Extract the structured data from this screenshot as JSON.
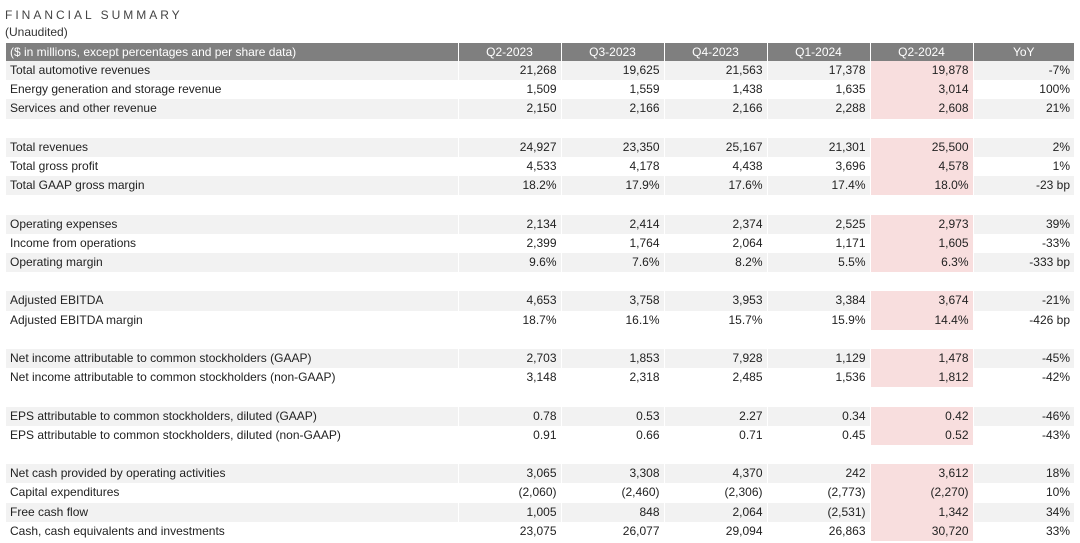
{
  "title": "FINANCIAL SUMMARY",
  "subtitle": "(Unaudited)",
  "table": {
    "header_label": "($ in millions, except percentages and per share data)",
    "columns": [
      "Q2-2023",
      "Q3-2023",
      "Q4-2023",
      "Q1-2024",
      "Q2-2024",
      "YoY"
    ],
    "groups": [
      [
        {
          "label": "Total automotive revenues",
          "values": [
            "21,268",
            "19,625",
            "21,563",
            "17,378",
            "19,878",
            "-7%"
          ]
        },
        {
          "label": "Energy generation and storage revenue",
          "values": [
            "1,509",
            "1,559",
            "1,438",
            "1,635",
            "3,014",
            "100%"
          ]
        },
        {
          "label": "Services and other revenue",
          "values": [
            "2,150",
            "2,166",
            "2,166",
            "2,288",
            "2,608",
            "21%"
          ]
        }
      ],
      [
        {
          "label": "Total revenues",
          "values": [
            "24,927",
            "23,350",
            "25,167",
            "21,301",
            "25,500",
            "2%"
          ]
        },
        {
          "label": "Total gross profit",
          "values": [
            "4,533",
            "4,178",
            "4,438",
            "3,696",
            "4,578",
            "1%"
          ]
        },
        {
          "label": "Total GAAP gross margin",
          "values": [
            "18.2%",
            "17.9%",
            "17.6%",
            "17.4%",
            "18.0%",
            "-23 bp"
          ]
        }
      ],
      [
        {
          "label": "Operating expenses",
          "values": [
            "2,134",
            "2,414",
            "2,374",
            "2,525",
            "2,973",
            "39%"
          ]
        },
        {
          "label": "Income from operations",
          "values": [
            "2,399",
            "1,764",
            "2,064",
            "1,171",
            "1,605",
            "-33%"
          ]
        },
        {
          "label": "Operating margin",
          "values": [
            "9.6%",
            "7.6%",
            "8.2%",
            "5.5%",
            "6.3%",
            "-333 bp"
          ]
        }
      ],
      [
        {
          "label": "Adjusted EBITDA",
          "values": [
            "4,653",
            "3,758",
            "3,953",
            "3,384",
            "3,674",
            "-21%"
          ]
        },
        {
          "label": "Adjusted EBITDA margin",
          "values": [
            "18.7%",
            "16.1%",
            "15.7%",
            "15.9%",
            "14.4%",
            "-426 bp"
          ]
        }
      ],
      [
        {
          "label": "Net income attributable to common stockholders (GAAP)",
          "values": [
            "2,703",
            "1,853",
            "7,928",
            "1,129",
            "1,478",
            "-45%"
          ]
        },
        {
          "label": "Net income attributable to common stockholders (non-GAAP)",
          "values": [
            "3,148",
            "2,318",
            "2,485",
            "1,536",
            "1,812",
            "-42%"
          ]
        }
      ],
      [
        {
          "label": "EPS attributable to common stockholders, diluted (GAAP)",
          "values": [
            "0.78",
            "0.53",
            "2.27",
            "0.34",
            "0.42",
            "-46%"
          ]
        },
        {
          "label": "EPS attributable to common stockholders, diluted (non-GAAP)",
          "values": [
            "0.91",
            "0.66",
            "0.71",
            "0.45",
            "0.52",
            "-43%"
          ]
        }
      ],
      [
        {
          "label": "Net cash provided by operating activities",
          "values": [
            "3,065",
            "3,308",
            "4,370",
            "242",
            "3,612",
            "18%"
          ]
        },
        {
          "label": "Capital expenditures",
          "values": [
            "(2,060)",
            "(2,460)",
            "(2,306)",
            "(2,773)",
            "(2,270)",
            "10%"
          ]
        },
        {
          "label": "Free cash flow",
          "values": [
            "1,005",
            "848",
            "2,064",
            "(2,531)",
            "1,342",
            "34%"
          ]
        },
        {
          "label": "Cash, cash equivalents and investments",
          "values": [
            "23,075",
            "26,077",
            "29,094",
            "26,863",
            "30,720",
            "33%"
          ]
        }
      ]
    ],
    "highlight_column": 4,
    "colors": {
      "header_bg": "#7f7f7f",
      "shaded_row": "#f2f2f2",
      "highlight": "#f8dede"
    }
  }
}
